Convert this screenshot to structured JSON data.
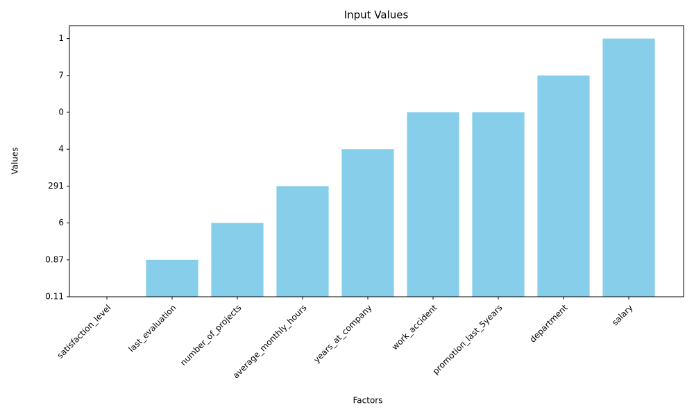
{
  "chart_data": {
    "type": "bar",
    "title": "Input Values",
    "x_label": "Factors",
    "y_label": "Values",
    "categories": [
      "satisfaction_level",
      "last_evaluation",
      "number_of_projects",
      "average_monthly_hours",
      "years_at_company",
      "work_accident",
      "promotion_last_5years",
      "department",
      "salary"
    ],
    "values": [
      0,
      1,
      2,
      3,
      4,
      5,
      5,
      6,
      7
    ],
    "color": "#87ceeb",
    "ylim": [
      0,
      7.35
    ],
    "yticks": [
      {
        "value": 0,
        "label": "0.11"
      },
      {
        "value": 1,
        "label": "0.87"
      },
      {
        "value": 2,
        "label": "6"
      },
      {
        "value": 3,
        "label": "291"
      },
      {
        "value": 4,
        "label": "4"
      },
      {
        "value": 5,
        "label": "0"
      },
      {
        "value": 6,
        "label": "7"
      },
      {
        "value": 7,
        "label": "1"
      }
    ],
    "grid": false
  }
}
